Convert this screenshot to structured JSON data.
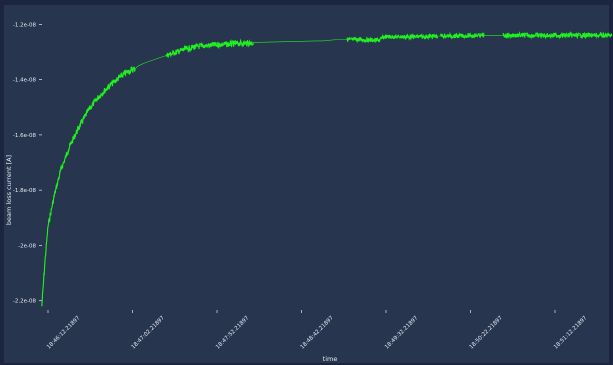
{
  "colors": {
    "panel": "#28354f",
    "frame": "#1b2540",
    "series": "#20f020",
    "text": "#e6ebf5"
  },
  "chart_data": {
    "type": "line",
    "xlabel": "time",
    "ylabel": "beam loss current [A]",
    "x_tick_labels": [
      "18:46:12.21897",
      "18:47:02.21897",
      "18:47:52.21897",
      "18:48:42.21897",
      "18:49:32.21897",
      "18:50:22.21897",
      "18:51:12.21897"
    ],
    "y_tick_labels": [
      "-2.2e-08",
      "-2e-08",
      "-1.8e-08",
      "-1.6e-08",
      "-1.4e-08",
      "-1.2e-08"
    ],
    "y_ticks": [
      -2.2e-08,
      -2e-08,
      -1.8e-08,
      -1.6e-08,
      -1.4e-08,
      -1.2e-08
    ],
    "ylim": [
      -2.23e-08,
      -1.13e-08
    ],
    "xlim": [
      -7,
      183
    ],
    "x_tick_seconds": [
      0,
      50,
      100,
      150,
      200,
      250,
      300
    ],
    "grid": false,
    "series": [
      {
        "x": [
          0,
          1,
          2,
          4,
          6,
          9,
          12,
          15,
          18,
          21,
          24,
          27,
          30,
          31,
          33,
          38,
          42,
          46,
          50,
          55,
          70,
          88,
          90,
          95,
          102,
          108,
          110,
          115,
          122,
          128,
          134,
          140,
          145,
          150,
          155,
          160,
          170,
          183
        ],
        "y": [
          -2.22e-08,
          -2.06e-08,
          -1.93e-08,
          -1.82e-08,
          -1.73e-08,
          -1.64e-08,
          -1.57e-08,
          -1.51e-08,
          -1.465e-08,
          -1.43e-08,
          -1.4e-08,
          -1.375e-08,
          -1.36e-08,
          -1.35e-08,
          -1.34e-08,
          -1.32e-08,
          -1.305e-08,
          -1.29e-08,
          -1.28e-08,
          -1.275e-08,
          -1.265e-08,
          -1.26e-08,
          -1.26e-08,
          -1.255e-08,
          -1.255e-08,
          -1.258e-08,
          -1.245e-08,
          -1.245e-08,
          -1.245e-08,
          -1.242e-08,
          -1.242e-08,
          -1.24e-08,
          -1.24e-08,
          -1.24e-08,
          -1.24e-08,
          -1.24e-08,
          -1.24e-08,
          -1.24e-08
        ]
      }
    ]
  }
}
